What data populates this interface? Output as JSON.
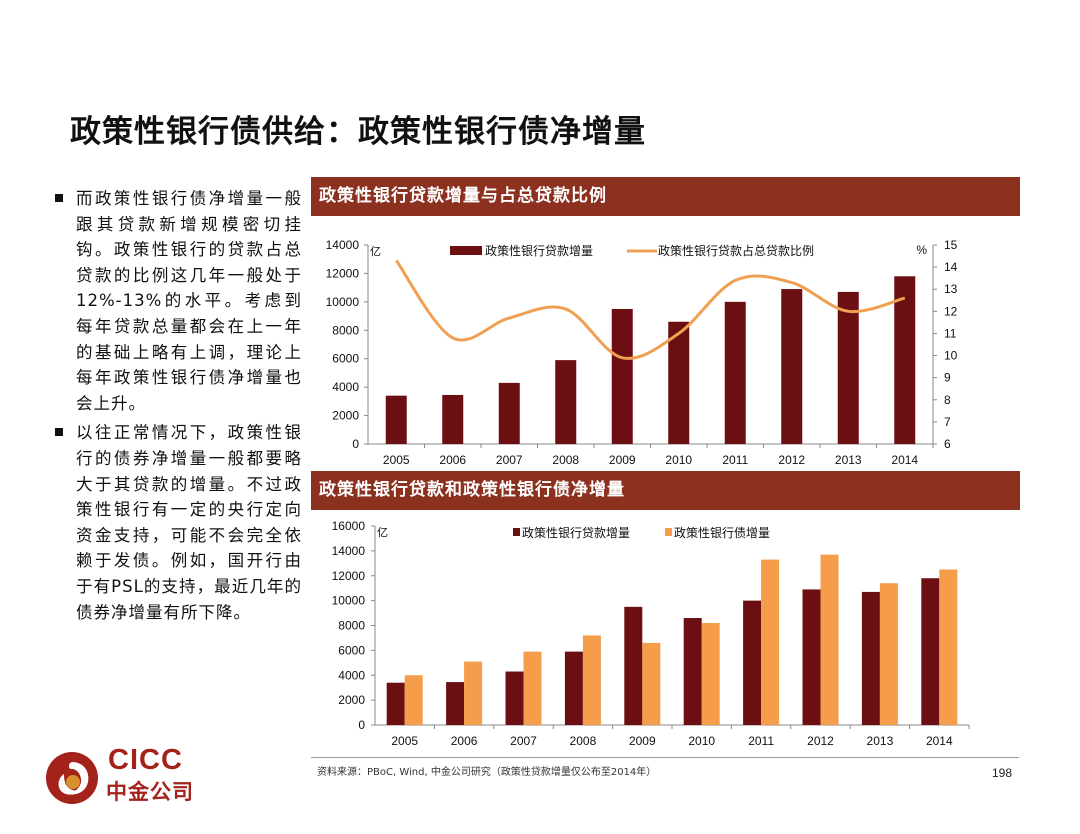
{
  "page": {
    "title": "政策性银行债供给：政策性银行债净增量",
    "page_number": "198",
    "source": "资料来源：PBoC, Wind, 中金公司研究（政策性贷款增量仅公布至2014年）"
  },
  "bullets": [
    {
      "text": "而政策性银行债净增量一般跟其贷款新增规模密切挂钩。政策性银行的贷款占总贷款的比例这几年一般处于12%-13%的水平。考虑到每年贷款总量都会在上一年的基础上略有上调，理论上每年政策性银行债净增量也会上升。"
    },
    {
      "text": "以往正常情况下，政策性银行的债券净增量一般都要略大于其贷款的增量。不过政策性银行有一定的央行定向资金支持，可能不会完全依赖于发债。例如，国开行由于有PSL的支持，最近几年的债券净增量有所下降。"
    }
  ],
  "logo": {
    "en": "CICC",
    "cn": "中金公司",
    "colors": [
      "#a3221a",
      "#d8912c"
    ]
  },
  "chart_data": [
    {
      "type": "bar",
      "title": "政策性银行贷款增量与占总贷款比例",
      "categories": [
        "2005",
        "2006",
        "2007",
        "2008",
        "2009",
        "2010",
        "2011",
        "2012",
        "2013",
        "2014"
      ],
      "y_unit": "亿",
      "y2_unit": "%",
      "ylim": [
        0,
        14000
      ],
      "yticks": [
        0,
        2000,
        4000,
        6000,
        8000,
        10000,
        12000,
        14000
      ],
      "y2lim": [
        6,
        15
      ],
      "y2ticks": [
        6,
        7,
        8,
        9,
        10,
        11,
        12,
        13,
        14,
        15
      ],
      "legend_position": "top",
      "grid": false,
      "series": [
        {
          "name": "政策性银行贷款增量",
          "type": "bar",
          "axis": "left",
          "color": "#6b0f12",
          "values": [
            3400,
            3450,
            4300,
            5900,
            9500,
            8600,
            10000,
            10900,
            10700,
            11800
          ]
        },
        {
          "name": "政策性银行贷款占总贷款比例",
          "type": "line",
          "axis": "right",
          "color": "#f0a052",
          "smooth": true,
          "values": [
            14.3,
            10.8,
            11.7,
            12.1,
            9.9,
            11.0,
            13.4,
            13.3,
            12.0,
            12.6
          ]
        }
      ]
    },
    {
      "type": "bar",
      "title": "政策性银行贷款和政策性银行债净增量",
      "categories": [
        "2005",
        "2006",
        "2007",
        "2008",
        "2009",
        "2010",
        "2011",
        "2012",
        "2013",
        "2014"
      ],
      "y_unit": "亿",
      "ylim": [
        0,
        16000
      ],
      "yticks": [
        0,
        2000,
        4000,
        6000,
        8000,
        10000,
        12000,
        14000,
        16000
      ],
      "legend_position": "top",
      "grid": false,
      "series": [
        {
          "name": "政策性银行贷款增量",
          "color": "#6b0f12",
          "values": [
            3400,
            3450,
            4300,
            5900,
            9500,
            8600,
            10000,
            10900,
            10700,
            11800
          ]
        },
        {
          "name": "政策性银行债增量",
          "color": "#f59d4a",
          "values": [
            4000,
            5100,
            5900,
            7200,
            6600,
            8200,
            13300,
            13700,
            11400,
            12500
          ]
        }
      ]
    }
  ]
}
